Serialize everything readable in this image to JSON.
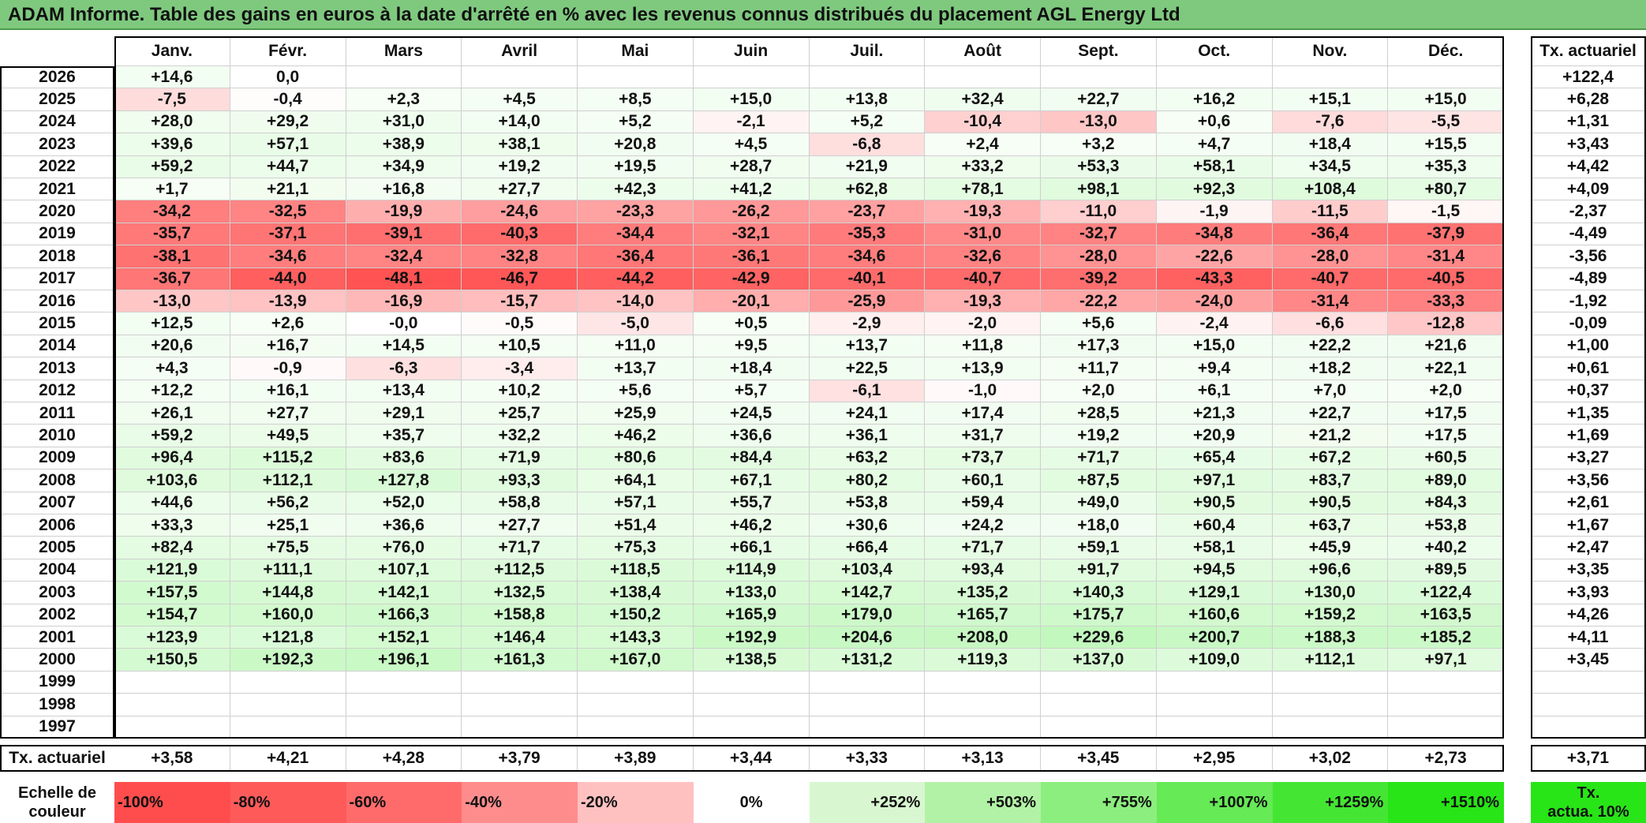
{
  "title": "ADAM Informe. Table des gains en euros à la date d'arrêté en % avec les revenus connus distribués du placement AGL Energy Ltd",
  "chart_data": {
    "type": "heatmap",
    "title": "ADAM Informe. Table des gains en euros à la date d'arrêté en % avec les revenus connus distribués du placement AGL Energy Ltd",
    "columns": [
      "Janv.",
      "Févr.",
      "Mars",
      "Avril",
      "Mai",
      "Juin",
      "Juil.",
      "Août",
      "Sept.",
      "Oct.",
      "Nov.",
      "Déc."
    ],
    "side_header": "Tx. actuariel",
    "rows": [
      {
        "year": "2026",
        "values": [
          "+14,6",
          "0,0",
          "",
          "",
          "",
          "",
          "",
          "",
          "",
          "",
          "",
          ""
        ],
        "rate": "+122,4"
      },
      {
        "year": "2025",
        "values": [
          "-7,5",
          "-0,4",
          "+2,3",
          "+4,5",
          "+8,5",
          "+15,0",
          "+13,8",
          "+32,4",
          "+22,7",
          "+16,2",
          "+15,1",
          "+15,0"
        ],
        "rate": "+6,28"
      },
      {
        "year": "2024",
        "values": [
          "+28,0",
          "+29,2",
          "+31,0",
          "+14,0",
          "+5,2",
          "-2,1",
          "+5,2",
          "-10,4",
          "-13,0",
          "+0,6",
          "-7,6",
          "-5,5"
        ],
        "rate": "+1,31"
      },
      {
        "year": "2023",
        "values": [
          "+39,6",
          "+57,1",
          "+38,9",
          "+38,1",
          "+20,8",
          "+4,5",
          "-6,8",
          "+2,4",
          "+3,2",
          "+4,7",
          "+18,4",
          "+15,5"
        ],
        "rate": "+3,43"
      },
      {
        "year": "2022",
        "values": [
          "+59,2",
          "+44,7",
          "+34,9",
          "+19,2",
          "+19,5",
          "+28,7",
          "+21,9",
          "+33,2",
          "+53,3",
          "+58,1",
          "+34,5",
          "+35,3"
        ],
        "rate": "+4,42"
      },
      {
        "year": "2021",
        "values": [
          "+1,7",
          "+21,1",
          "+16,8",
          "+27,7",
          "+42,3",
          "+41,2",
          "+62,8",
          "+78,1",
          "+98,1",
          "+92,3",
          "+108,4",
          "+80,7"
        ],
        "rate": "+4,09"
      },
      {
        "year": "2020",
        "values": [
          "-34,2",
          "-32,5",
          "-19,9",
          "-24,6",
          "-23,3",
          "-26,2",
          "-23,7",
          "-19,3",
          "-11,0",
          "-1,9",
          "-11,5",
          "-1,5"
        ],
        "rate": "-2,37"
      },
      {
        "year": "2019",
        "values": [
          "-35,7",
          "-37,1",
          "-39,1",
          "-40,3",
          "-34,4",
          "-32,1",
          "-35,3",
          "-31,0",
          "-32,7",
          "-34,8",
          "-36,4",
          "-37,9"
        ],
        "rate": "-4,49"
      },
      {
        "year": "2018",
        "values": [
          "-38,1",
          "-34,6",
          "-32,4",
          "-32,8",
          "-36,4",
          "-36,1",
          "-34,6",
          "-32,6",
          "-28,0",
          "-22,6",
          "-28,0",
          "-31,4"
        ],
        "rate": "-3,56"
      },
      {
        "year": "2017",
        "values": [
          "-36,7",
          "-44,0",
          "-48,1",
          "-46,7",
          "-44,2",
          "-42,9",
          "-40,1",
          "-40,7",
          "-39,2",
          "-43,3",
          "-40,7",
          "-40,5"
        ],
        "rate": "-4,89"
      },
      {
        "year": "2016",
        "values": [
          "-13,0",
          "-13,9",
          "-16,9",
          "-15,7",
          "-14,0",
          "-20,1",
          "-25,9",
          "-19,3",
          "-22,2",
          "-24,0",
          "-31,4",
          "-33,3"
        ],
        "rate": "-1,92"
      },
      {
        "year": "2015",
        "values": [
          "+12,5",
          "+2,6",
          "-0,0",
          "-0,5",
          "-5,0",
          "+0,5",
          "-2,9",
          "-2,0",
          "+5,6",
          "-2,4",
          "-6,6",
          "-12,8"
        ],
        "rate": "-0,09"
      },
      {
        "year": "2014",
        "values": [
          "+20,6",
          "+16,7",
          "+14,5",
          "+10,5",
          "+11,0",
          "+9,5",
          "+13,7",
          "+11,8",
          "+17,3",
          "+15,0",
          "+22,2",
          "+21,6"
        ],
        "rate": "+1,00"
      },
      {
        "year": "2013",
        "values": [
          "+4,3",
          "-0,9",
          "-6,3",
          "-3,4",
          "+13,7",
          "+18,4",
          "+22,5",
          "+13,9",
          "+11,7",
          "+9,4",
          "+18,2",
          "+22,1"
        ],
        "rate": "+0,61"
      },
      {
        "year": "2012",
        "values": [
          "+12,2",
          "+16,1",
          "+13,4",
          "+10,2",
          "+5,6",
          "+5,7",
          "-6,1",
          "-1,0",
          "+2,0",
          "+6,1",
          "+7,0",
          "+2,0"
        ],
        "rate": "+0,37"
      },
      {
        "year": "2011",
        "values": [
          "+26,1",
          "+27,7",
          "+29,1",
          "+25,7",
          "+25,9",
          "+24,5",
          "+24,1",
          "+17,4",
          "+28,5",
          "+21,3",
          "+22,7",
          "+17,5"
        ],
        "rate": "+1,35"
      },
      {
        "year": "2010",
        "values": [
          "+59,2",
          "+49,5",
          "+35,7",
          "+32,2",
          "+46,2",
          "+36,6",
          "+36,1",
          "+31,7",
          "+19,2",
          "+20,9",
          "+21,2",
          "+17,5"
        ],
        "rate": "+1,69"
      },
      {
        "year": "2009",
        "values": [
          "+96,4",
          "+115,2",
          "+83,6",
          "+71,9",
          "+80,6",
          "+84,4",
          "+63,2",
          "+73,7",
          "+71,7",
          "+65,4",
          "+67,2",
          "+60,5"
        ],
        "rate": "+3,27"
      },
      {
        "year": "2008",
        "values": [
          "+103,6",
          "+112,1",
          "+127,8",
          "+93,3",
          "+64,1",
          "+67,1",
          "+80,2",
          "+60,1",
          "+87,5",
          "+97,1",
          "+83,7",
          "+89,0"
        ],
        "rate": "+3,56"
      },
      {
        "year": "2007",
        "values": [
          "+44,6",
          "+56,2",
          "+52,0",
          "+58,8",
          "+57,1",
          "+55,7",
          "+53,8",
          "+59,4",
          "+49,0",
          "+90,5",
          "+90,5",
          "+84,3"
        ],
        "rate": "+2,61"
      },
      {
        "year": "2006",
        "values": [
          "+33,3",
          "+25,1",
          "+36,6",
          "+27,7",
          "+51,4",
          "+46,2",
          "+30,6",
          "+24,2",
          "+18,0",
          "+60,4",
          "+63,7",
          "+53,8"
        ],
        "rate": "+1,67"
      },
      {
        "year": "2005",
        "values": [
          "+82,4",
          "+75,5",
          "+76,0",
          "+71,7",
          "+75,3",
          "+66,1",
          "+66,4",
          "+71,7",
          "+59,1",
          "+58,1",
          "+45,9",
          "+40,2"
        ],
        "rate": "+2,47"
      },
      {
        "year": "2004",
        "values": [
          "+121,9",
          "+111,1",
          "+107,1",
          "+112,5",
          "+118,5",
          "+114,9",
          "+103,4",
          "+93,4",
          "+91,7",
          "+94,5",
          "+96,6",
          "+89,5"
        ],
        "rate": "+3,35"
      },
      {
        "year": "2003",
        "values": [
          "+157,5",
          "+144,8",
          "+142,1",
          "+132,5",
          "+138,4",
          "+133,0",
          "+142,7",
          "+135,2",
          "+140,3",
          "+129,1",
          "+130,0",
          "+122,4"
        ],
        "rate": "+3,93"
      },
      {
        "year": "2002",
        "values": [
          "+154,7",
          "+160,0",
          "+166,3",
          "+158,8",
          "+150,2",
          "+165,9",
          "+179,0",
          "+165,7",
          "+175,7",
          "+160,6",
          "+159,2",
          "+163,5"
        ],
        "rate": "+4,26"
      },
      {
        "year": "2001",
        "values": [
          "+123,9",
          "+121,8",
          "+152,1",
          "+146,4",
          "+143,3",
          "+192,9",
          "+204,6",
          "+208,0",
          "+229,6",
          "+200,7",
          "+188,3",
          "+185,2"
        ],
        "rate": "+4,11"
      },
      {
        "year": "2000",
        "values": [
          "+150,5",
          "+192,3",
          "+196,1",
          "+161,3",
          "+167,0",
          "+138,5",
          "+131,2",
          "+119,3",
          "+137,0",
          "+109,0",
          "+112,1",
          "+97,1"
        ],
        "rate": "+3,45"
      },
      {
        "year": "1999",
        "values": [
          "",
          "",
          "",
          "",
          "",
          "",
          "",
          "",
          "",
          "",
          "",
          ""
        ],
        "rate": ""
      },
      {
        "year": "1998",
        "values": [
          "",
          "",
          "",
          "",
          "",
          "",
          "",
          "",
          "",
          "",
          "",
          ""
        ],
        "rate": ""
      },
      {
        "year": "1997",
        "values": [
          "",
          "",
          "",
          "",
          "",
          "",
          "",
          "",
          "",
          "",
          "",
          ""
        ],
        "rate": ""
      }
    ],
    "footer": {
      "label": "Tx. actuariel",
      "values": [
        "+3,58",
        "+4,21",
        "+4,28",
        "+3,79",
        "+3,89",
        "+3,44",
        "+3,33",
        "+3,13",
        "+3,45",
        "+2,95",
        "+3,02",
        "+2,73"
      ],
      "overall": "+3,71"
    },
    "color_scale": {
      "label_line1": "Echelle de",
      "label_line2": "couleur",
      "stops": [
        {
          "label": "-100%",
          "color": "#ff4d4d",
          "align": "left"
        },
        {
          "label": "-80%",
          "color": "#ff5a5a",
          "align": "left"
        },
        {
          "label": "-60%",
          "color": "#ff6b6b",
          "align": "left"
        },
        {
          "label": "-40%",
          "color": "#ff8c8c",
          "align": "left"
        },
        {
          "label": "-20%",
          "color": "#ffc0c0",
          "align": "left"
        },
        {
          "label": "0%",
          "color": "#ffffff",
          "align": "center"
        },
        {
          "label": "+252%",
          "color": "#d8f7d0",
          "align": "right"
        },
        {
          "label": "+503%",
          "color": "#b2f2a6",
          "align": "right"
        },
        {
          "label": "+755%",
          "color": "#8cee7e",
          "align": "right"
        },
        {
          "label": "+1007%",
          "color": "#66ea56",
          "align": "right"
        },
        {
          "label": "+1259%",
          "color": "#44e633",
          "align": "right"
        },
        {
          "label": "+1510%",
          "color": "#27e516",
          "align": "right"
        }
      ],
      "side_line1": "Tx.",
      "side_line2": "actua. 10%",
      "side_color": "#27e516"
    },
    "colors": {
      "title_bg": "#7fc97f",
      "negative_strong": "#ff4d4d",
      "positive_strong": "#27e516"
    }
  }
}
